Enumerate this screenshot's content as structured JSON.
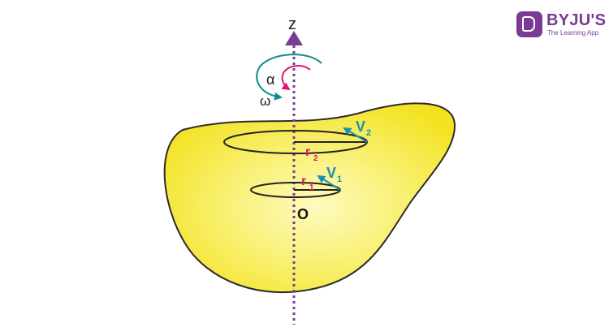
{
  "brand": {
    "name": "BYJU'S",
    "tagline": "The Learning App",
    "color": "#7a3b94"
  },
  "labels": {
    "axis": "z",
    "origin": "O",
    "alpha": "α",
    "omega": "ω",
    "r1_main": "r",
    "r1_sub": "1",
    "r2_main": "r",
    "r2_sub": "2",
    "v1_main": "V",
    "v1_sub": "1",
    "v2_main": "V",
    "v2_sub": "2"
  },
  "colors": {
    "body_fill_center": "#fdfbbf",
    "body_fill_edge": "#f3e221",
    "body_stroke": "#2b2b2b",
    "axis": "#7a3b94",
    "omega_arrow": "#0f8a8a",
    "alpha_arrow": "#e0156f",
    "radius_label": "#e0156f",
    "velocity": "#1a8fb5",
    "circle_stroke": "#222222"
  }
}
